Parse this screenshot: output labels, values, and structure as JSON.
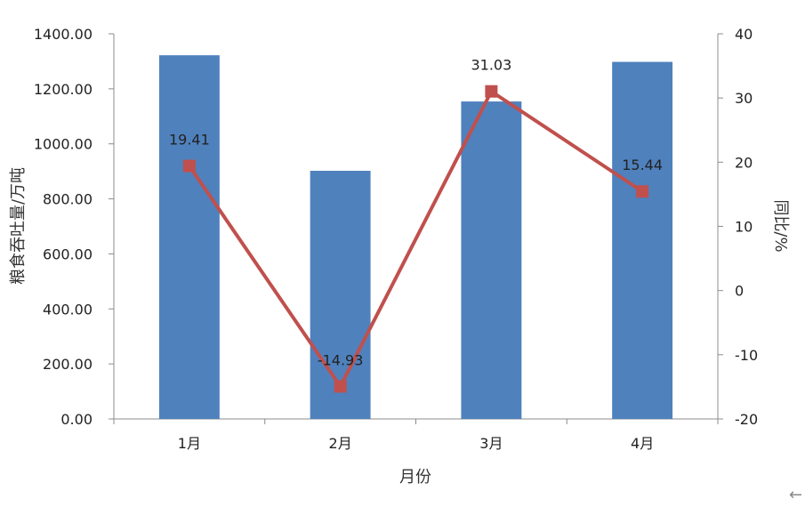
{
  "chart_data": {
    "type": "bar",
    "categories": [
      "1月",
      "2月",
      "3月",
      "4月"
    ],
    "series": [
      {
        "values": [
          1322,
          902,
          1154,
          1298
        ],
        "axis": "left",
        "kind": "bar",
        "color": "#4F81BD"
      },
      {
        "values": [
          19.41,
          -14.93,
          31.03,
          15.44
        ],
        "axis": "right",
        "kind": "line",
        "color": "#C0504D",
        "labels": [
          "19.41",
          "-14.93",
          "31.03",
          "15.44"
        ]
      }
    ],
    "xlabel": "月份",
    "ylabel": "粮食吞吐量/万吨",
    "y2label": "同比/%",
    "ylim": [
      0,
      1400
    ],
    "y2lim": [
      -20,
      40
    ],
    "yticks": [
      "0.00",
      "200.00",
      "400.00",
      "600.00",
      "800.00",
      "1000.00",
      "1200.00",
      "1400.00"
    ],
    "y2ticks": [
      "-20",
      "-10",
      "0",
      "10",
      "20",
      "30",
      "40"
    ],
    "grid": false,
    "legend": "none"
  },
  "ui": {
    "back_icon": "←"
  }
}
